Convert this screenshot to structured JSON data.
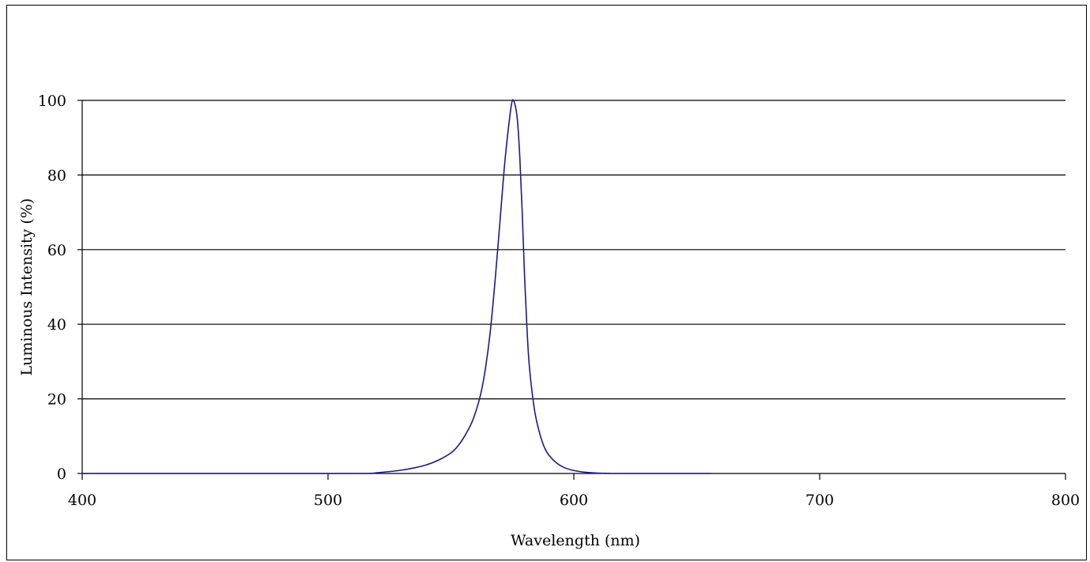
{
  "chart_data": {
    "type": "line",
    "title": "",
    "xlabel": "Wavelength (nm)",
    "ylabel": "Luminous Intensity (%)",
    "xlim": [
      400,
      800
    ],
    "ylim": [
      0,
      100
    ],
    "xticks": [
      400,
      500,
      600,
      700,
      800
    ],
    "yticks": [
      0,
      20,
      40,
      60,
      80,
      100
    ],
    "grid": "horizontal",
    "line_color": "#1a1a8c",
    "series": [
      {
        "x": [
          400,
          450,
          500,
          516,
          520,
          525,
          530,
          535,
          540,
          545,
          550,
          553,
          556,
          559,
          562,
          564,
          566,
          568,
          570,
          572,
          574,
          575,
          576,
          577,
          578,
          579,
          580,
          581,
          582,
          584,
          586,
          588,
          590,
          593,
          596,
          600,
          605,
          610,
          615,
          620,
          630,
          640,
          656
        ],
        "y": [
          0,
          0,
          0,
          0,
          0.2,
          0.5,
          0.9,
          1.5,
          2.3,
          3.6,
          5.5,
          7.5,
          10.5,
          14.5,
          21,
          28,
          38,
          52,
          68,
          84,
          96,
          100,
          99,
          95,
          85,
          70,
          52,
          38,
          28,
          17,
          11,
          7,
          4.8,
          2.8,
          1.6,
          0.8,
          0.3,
          0.1,
          0,
          0,
          0,
          0,
          0
        ]
      }
    ]
  }
}
